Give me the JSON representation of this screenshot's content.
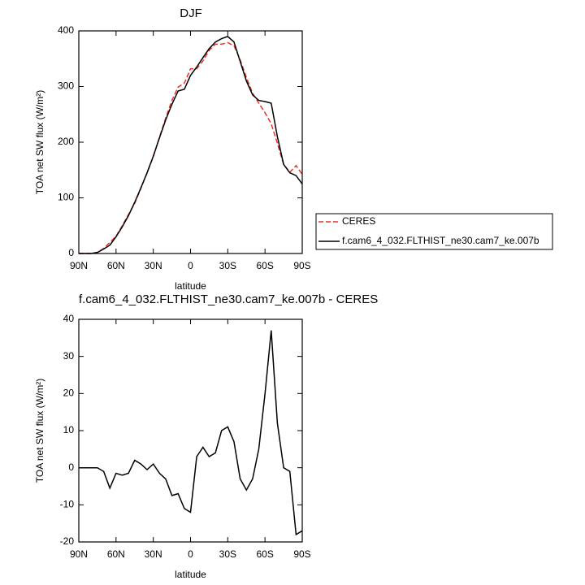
{
  "chart_data": [
    {
      "type": "line",
      "title": "DJF",
      "xlabel": "latitude",
      "ylabel": "TOA net SW flux (W/m²)",
      "x": [
        90,
        85,
        80,
        75,
        70,
        65,
        60,
        55,
        50,
        45,
        40,
        35,
        30,
        25,
        20,
        15,
        10,
        5,
        0,
        -5,
        -10,
        -15,
        -20,
        -25,
        -30,
        -35,
        -40,
        -45,
        -50,
        -55,
        -60,
        -65,
        -70,
        -75,
        -80,
        -85,
        -90
      ],
      "series": [
        {
          "name": "CERES",
          "color": "#e8322b",
          "linestyle": "dashed",
          "values": [
            0,
            0,
            0,
            2,
            9,
            20,
            31,
            50,
            70,
            90,
            117,
            145,
            174,
            209,
            243,
            275,
            299,
            306,
            332,
            332,
            346,
            365,
            376,
            376,
            379,
            373,
            348,
            316,
            288,
            270,
            253,
            233,
            198,
            160,
            146,
            158,
            142
          ]
        },
        {
          "name": "f.cam6_4_032.FLTHIST_ne30.cam7_ke.007b",
          "color": "#000000",
          "linestyle": "solid",
          "values": [
            0,
            0,
            0,
            2,
            8,
            15,
            30,
            48,
            68,
            92,
            118,
            145,
            175,
            208,
            240,
            268,
            292,
            295,
            320,
            335,
            352,
            368,
            380,
            386,
            390,
            380,
            345,
            310,
            285,
            275,
            273,
            270,
            210,
            160,
            145,
            140,
            125
          ]
        }
      ],
      "xlim": [
        90,
        -90
      ],
      "xticks": [
        {
          "value": 90,
          "label": "90N"
        },
        {
          "value": 60,
          "label": "60N"
        },
        {
          "value": 30,
          "label": "30N"
        },
        0,
        {
          "value": -30,
          "label": "30S"
        },
        {
          "value": -60,
          "label": "60S"
        },
        {
          "value": -90,
          "label": "90S"
        }
      ],
      "ylim": [
        0,
        400
      ],
      "yticks": [
        0,
        100,
        200,
        300,
        400
      ]
    },
    {
      "type": "line",
      "title": "f.cam6_4_032.FLTHIST_ne30.cam7_ke.007b - CERES",
      "xlabel": "latitude",
      "ylabel": "TOA net SW flux (W/m²)",
      "x": [
        90,
        85,
        80,
        75,
        70,
        65,
        60,
        55,
        50,
        45,
        40,
        35,
        30,
        25,
        20,
        15,
        10,
        5,
        0,
        -5,
        -10,
        -15,
        -20,
        -25,
        -30,
        -35,
        -40,
        -45,
        -50,
        -55,
        -60,
        -65,
        -70,
        -75,
        -80,
        -85,
        -90
      ],
      "series": [
        {
          "color": "#000000",
          "linestyle": "solid",
          "values": [
            0,
            0,
            0,
            0,
            -1,
            -5.5,
            -1.5,
            -2,
            -1.5,
            2,
            1,
            -0.5,
            1,
            -1.5,
            -3,
            -7.5,
            -7,
            -11,
            -12,
            3,
            5.5,
            3,
            4,
            10,
            11,
            7,
            -3,
            -6,
            -3,
            5,
            20,
            37,
            12,
            0,
            -1,
            -18,
            -17
          ]
        }
      ],
      "xlim": [
        90,
        -90
      ],
      "xticks": [
        {
          "value": 90,
          "label": "90N"
        },
        {
          "value": 60,
          "label": "60N"
        },
        {
          "value": 30,
          "label": "30N"
        },
        0,
        {
          "value": -30,
          "label": "30S"
        },
        {
          "value": -60,
          "label": "60S"
        },
        {
          "value": -90,
          "label": "90S"
        }
      ],
      "ylim": [
        -20,
        40
      ],
      "yticks": [
        -20,
        -10,
        0,
        10,
        20,
        30,
        40
      ]
    }
  ]
}
